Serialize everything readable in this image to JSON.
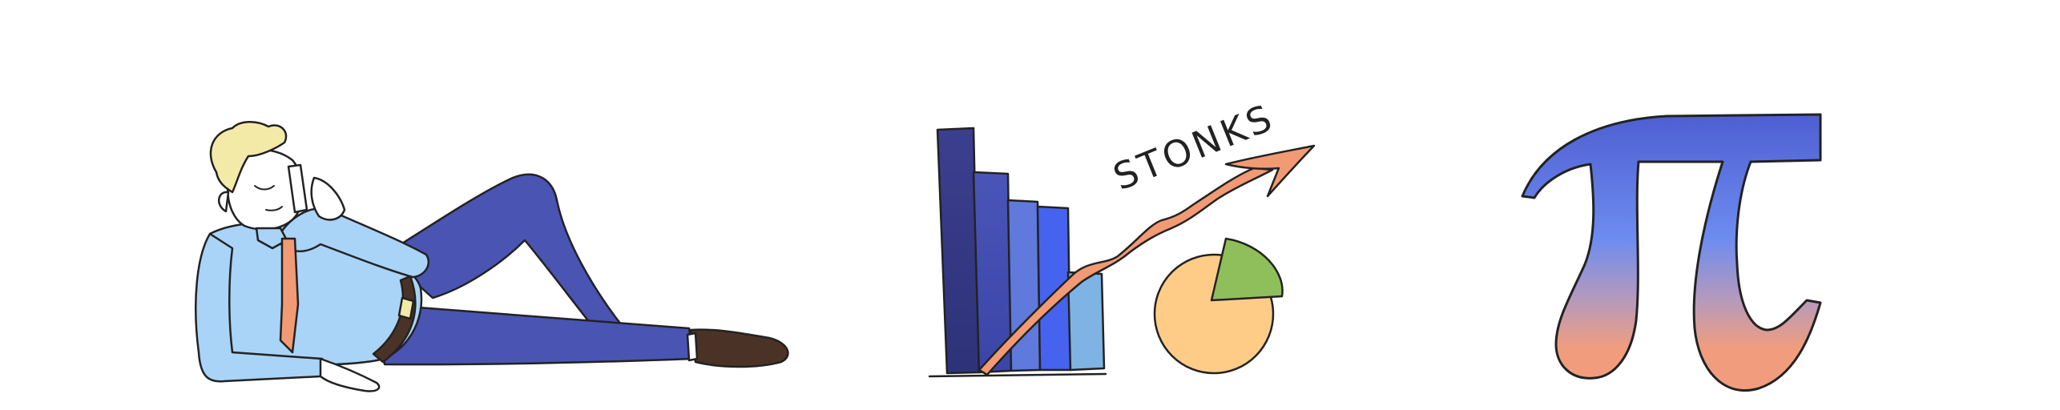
{
  "illustrations": [
    {
      "icon": "reclining-businessman-phone-icon"
    },
    {
      "icon": "stonks-chart-icon",
      "caption": "STONKS"
    },
    {
      "icon": "pi-symbol-icon"
    }
  ],
  "colors": {
    "background": "#ffffff",
    "outline": "#222222",
    "shirt": "#a9d3f7",
    "hair": "#f4eaa8",
    "tie": "#f29a73",
    "pants": "#4a54b3",
    "belt": "#4a3326",
    "shoe": "#4a3326",
    "bar_dark": "#3b3f8f",
    "bar_mid": "#5567e0",
    "bar_light": "#7eb3e3",
    "arrow": "#f29a73",
    "pie_main": "#ffcc88",
    "pie_slice": "#8fbf5a",
    "pi_top": "#4e5fd1",
    "pi_bottom": "#f19d7d"
  }
}
